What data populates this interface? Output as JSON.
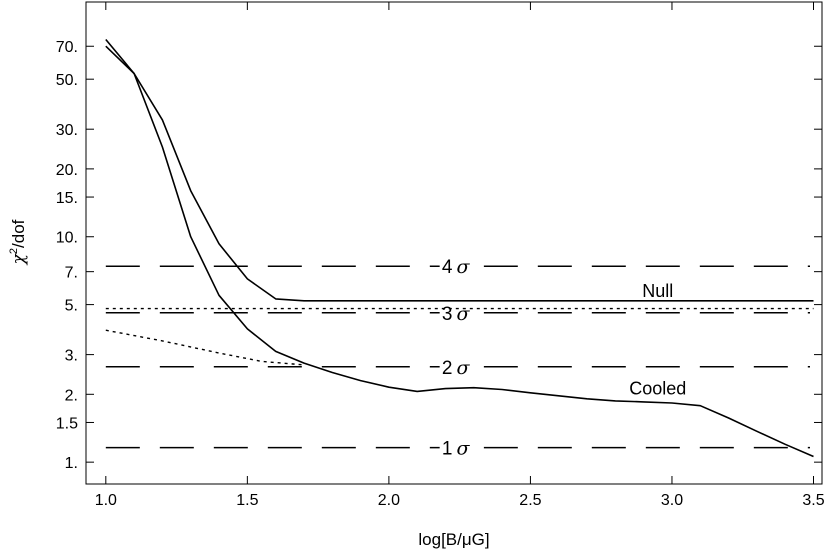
{
  "chart_data": {
    "type": "line",
    "xlabel": "log[B/μG]",
    "ylabel": "χ²/dof",
    "ylabel_parts": {
      "chi": "χ",
      "sup": "2",
      "rest": "/dof"
    },
    "xlim": [
      0.93,
      3.53
    ],
    "ylim": [
      0.8,
      110
    ],
    "yscale": "log",
    "grid": false,
    "xticks": [
      {
        "value": 1.0,
        "label": "1.0"
      },
      {
        "value": 1.5,
        "label": "1.5"
      },
      {
        "value": 2.0,
        "label": "2.0"
      },
      {
        "value": 2.5,
        "label": "2.5"
      },
      {
        "value": 3.0,
        "label": "3.0"
      },
      {
        "value": 3.5,
        "label": "3.5"
      }
    ],
    "yticks": [
      {
        "value": 1,
        "label": "1."
      },
      {
        "value": 1.5,
        "label": "1.5"
      },
      {
        "value": 2,
        "label": "2."
      },
      {
        "value": 3,
        "label": "3."
      },
      {
        "value": 5,
        "label": "5."
      },
      {
        "value": 7,
        "label": "7."
      },
      {
        "value": 10,
        "label": "10."
      },
      {
        "value": 15,
        "label": "15."
      },
      {
        "value": 20,
        "label": "20."
      },
      {
        "value": 30,
        "label": "30."
      },
      {
        "value": 50,
        "label": "50."
      },
      {
        "value": 70,
        "label": "70."
      }
    ],
    "sigma_lines": [
      {
        "value": 1.16,
        "label": "1",
        "symbol": "σ"
      },
      {
        "value": 2.65,
        "label": "2",
        "symbol": "σ"
      },
      {
        "value": 4.6,
        "label": "3",
        "symbol": "σ"
      },
      {
        "value": 7.4,
        "label": "4",
        "symbol": "σ"
      }
    ],
    "series": [
      {
        "name": "Null",
        "style": "solid",
        "x": [
          1.0,
          1.1,
          1.2,
          1.3,
          1.4,
          1.5,
          1.6,
          1.7,
          2.0,
          2.5,
          3.0,
          3.5
        ],
        "y": [
          75,
          53,
          33,
          16,
          9.3,
          6.5,
          5.3,
          5.2,
          5.2,
          5.2,
          5.2,
          5.2
        ]
      },
      {
        "name": "Cooled",
        "style": "solid",
        "x": [
          1.0,
          1.1,
          1.2,
          1.3,
          1.4,
          1.5,
          1.6,
          1.7,
          1.8,
          1.9,
          2.0,
          2.1,
          2.2,
          2.3,
          2.4,
          2.5,
          2.6,
          2.7,
          2.8,
          2.9,
          3.0,
          3.1,
          3.2,
          3.3,
          3.4,
          3.5
        ],
        "y": [
          70,
          53,
          25,
          10,
          5.5,
          3.9,
          3.1,
          2.75,
          2.5,
          2.3,
          2.15,
          2.06,
          2.12,
          2.14,
          2.1,
          2.03,
          1.97,
          1.91,
          1.87,
          1.85,
          1.83,
          1.78,
          1.57,
          1.37,
          1.2,
          1.06
        ]
      },
      {
        "style": "dotted",
        "x": [
          1.0,
          3.5
        ],
        "y": [
          4.8,
          4.8
        ]
      },
      {
        "style": "dotted",
        "x": [
          1.0,
          1.2,
          1.4,
          1.55,
          1.7
        ],
        "y": [
          3.85,
          3.45,
          3.05,
          2.8,
          2.7
        ]
      }
    ],
    "annotations": [
      {
        "text": "Null",
        "x": 2.95,
        "y": 5.75
      },
      {
        "text": "Cooled",
        "x": 2.95,
        "y": 2.12
      }
    ]
  }
}
